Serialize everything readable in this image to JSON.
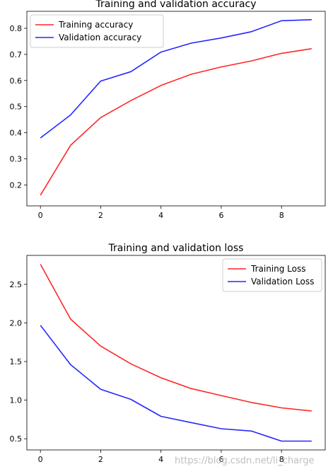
{
  "watermark": "https://blog.csdn.net/li_charge",
  "chart_data": [
    {
      "type": "line",
      "title": "Training and validation accuracy",
      "xlabel": "",
      "ylabel": "",
      "x": [
        0,
        1,
        2,
        3,
        4,
        5,
        6,
        7,
        8,
        9
      ],
      "xticks": [
        0,
        2,
        4,
        6,
        8
      ],
      "yticks": [
        0.2,
        0.3,
        0.4,
        0.5,
        0.6,
        0.7,
        0.8
      ],
      "xlim": [
        -0.45,
        9.45
      ],
      "ylim": [
        0.12,
        0.865
      ],
      "grid": false,
      "legend": "upper left",
      "series": [
        {
          "name": "Training accuracy",
          "color": "#ff0000",
          "values": [
            0.161,
            0.352,
            0.458,
            0.523,
            0.581,
            0.624,
            0.652,
            0.675,
            0.704,
            0.722
          ]
        },
        {
          "name": "Validation accuracy",
          "color": "#0000ff",
          "values": [
            0.38,
            0.468,
            0.598,
            0.634,
            0.709,
            0.743,
            0.763,
            0.787,
            0.829,
            0.833
          ]
        }
      ]
    },
    {
      "type": "line",
      "title": "Training and validation loss",
      "xlabel": "",
      "ylabel": "",
      "x": [
        0,
        1,
        2,
        3,
        4,
        5,
        6,
        7,
        8,
        9
      ],
      "xticks": [
        0,
        2,
        4,
        6,
        8
      ],
      "yticks": [
        0.5,
        1.0,
        1.5,
        2.0,
        2.5
      ],
      "ytick_labels": [
        "0.5",
        "1.0",
        "1.5",
        "2.0",
        "2.5"
      ],
      "xlim": [
        -0.45,
        9.45
      ],
      "ylim": [
        0.355,
        2.875
      ],
      "grid": false,
      "legend": "upper right",
      "series": [
        {
          "name": "Training Loss",
          "color": "#ff0000",
          "values": [
            2.76,
            2.05,
            1.7,
            1.47,
            1.29,
            1.15,
            1.06,
            0.97,
            0.9,
            0.86
          ]
        },
        {
          "name": "Validation Loss",
          "color": "#0000ff",
          "values": [
            1.97,
            1.46,
            1.14,
            1.01,
            0.79,
            0.71,
            0.63,
            0.6,
            0.47,
            0.47
          ]
        }
      ]
    }
  ]
}
